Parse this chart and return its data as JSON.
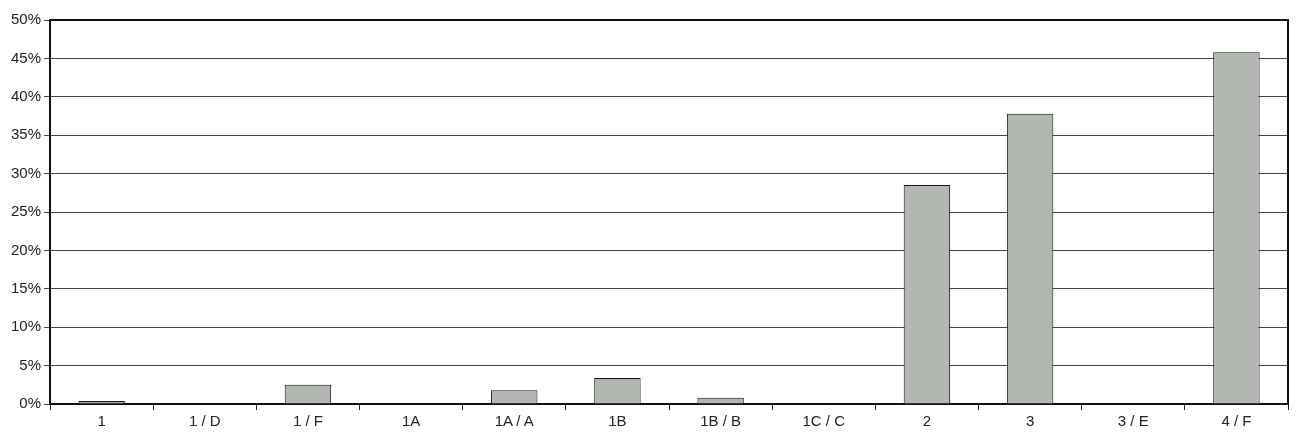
{
  "chart_data": {
    "type": "bar",
    "categories": [
      "1",
      "1 / D",
      "1 / F",
      "1A",
      "1A / A",
      "1B",
      "1B / B",
      "1C / C",
      "2",
      "3",
      "3 / E",
      "4 / F"
    ],
    "values": [
      0.4,
      0,
      2.5,
      0,
      1.8,
      3.4,
      0.8,
      0,
      28.5,
      37.8,
      0,
      45.8
    ],
    "color": "#b3b7b2",
    "ylim": [
      0,
      50
    ],
    "yticks": [
      {
        "value": 0,
        "label": "0%"
      },
      {
        "value": 5,
        "label": "5%"
      },
      {
        "value": 10,
        "label": "10%"
      },
      {
        "value": 15,
        "label": "15%"
      },
      {
        "value": 20,
        "label": "20%"
      },
      {
        "value": 25,
        "label": "25%"
      },
      {
        "value": 30,
        "label": "30%"
      },
      {
        "value": 35,
        "label": "35%"
      },
      {
        "value": 40,
        "label": "40%"
      },
      {
        "value": 45,
        "label": "45%"
      },
      {
        "value": 50,
        "label": "50%"
      }
    ],
    "grid": "y",
    "legend": false
  }
}
